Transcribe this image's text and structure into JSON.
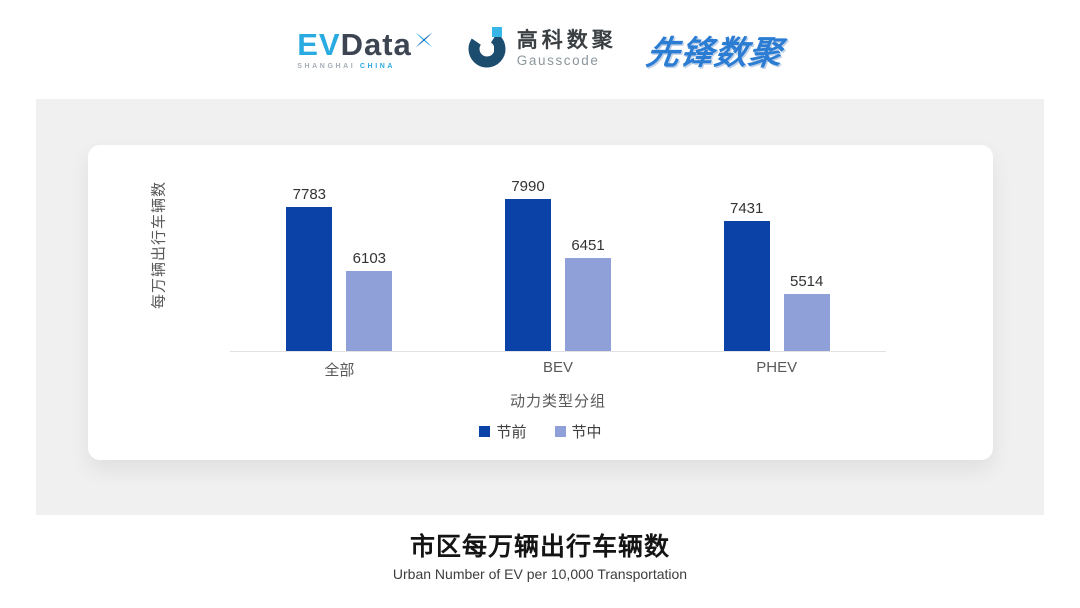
{
  "header": {
    "evdata": {
      "ev": "EV",
      "data": "Data",
      "tagline_left": "SHANGHAI",
      "tagline_right": "CHINA"
    },
    "gausscode": {
      "cn_name": "高科数聚",
      "en_name": "Gausscode"
    },
    "xianfeng": {
      "name": "先锋数聚"
    }
  },
  "chart_data": {
    "type": "bar",
    "categories": [
      "全部",
      "BEV",
      "PHEV"
    ],
    "series": [
      {
        "name": "节前",
        "color": "#0b42a8",
        "values": [
          7783,
          7990,
          7431
        ]
      },
      {
        "name": "节中",
        "color": "#8fa0d8",
        "values": [
          6103,
          6451,
          5514
        ]
      }
    ],
    "xlabel": "动力类型分组",
    "ylabel": "每万辆出行车辆数",
    "ylim": [
      4000,
      9000
    ],
    "grid": false,
    "value_labels": true,
    "legend_position": "bottom"
  },
  "footer": {
    "title": "市区每万辆出行车辆数",
    "subtitle": "Urban Number of EV per 10,000 Transportation"
  },
  "colors": {
    "panel_bg": "#f0f0f0",
    "card_bg": "#ffffff",
    "axis_line": "#e2e2e2",
    "series_pre": "#0b42a8",
    "series_mid": "#8fa0d8",
    "brand_lightblue": "#29abe2",
    "brand_darkslate": "#3d4553",
    "xianfeng_blue": "#2b7cd3"
  }
}
